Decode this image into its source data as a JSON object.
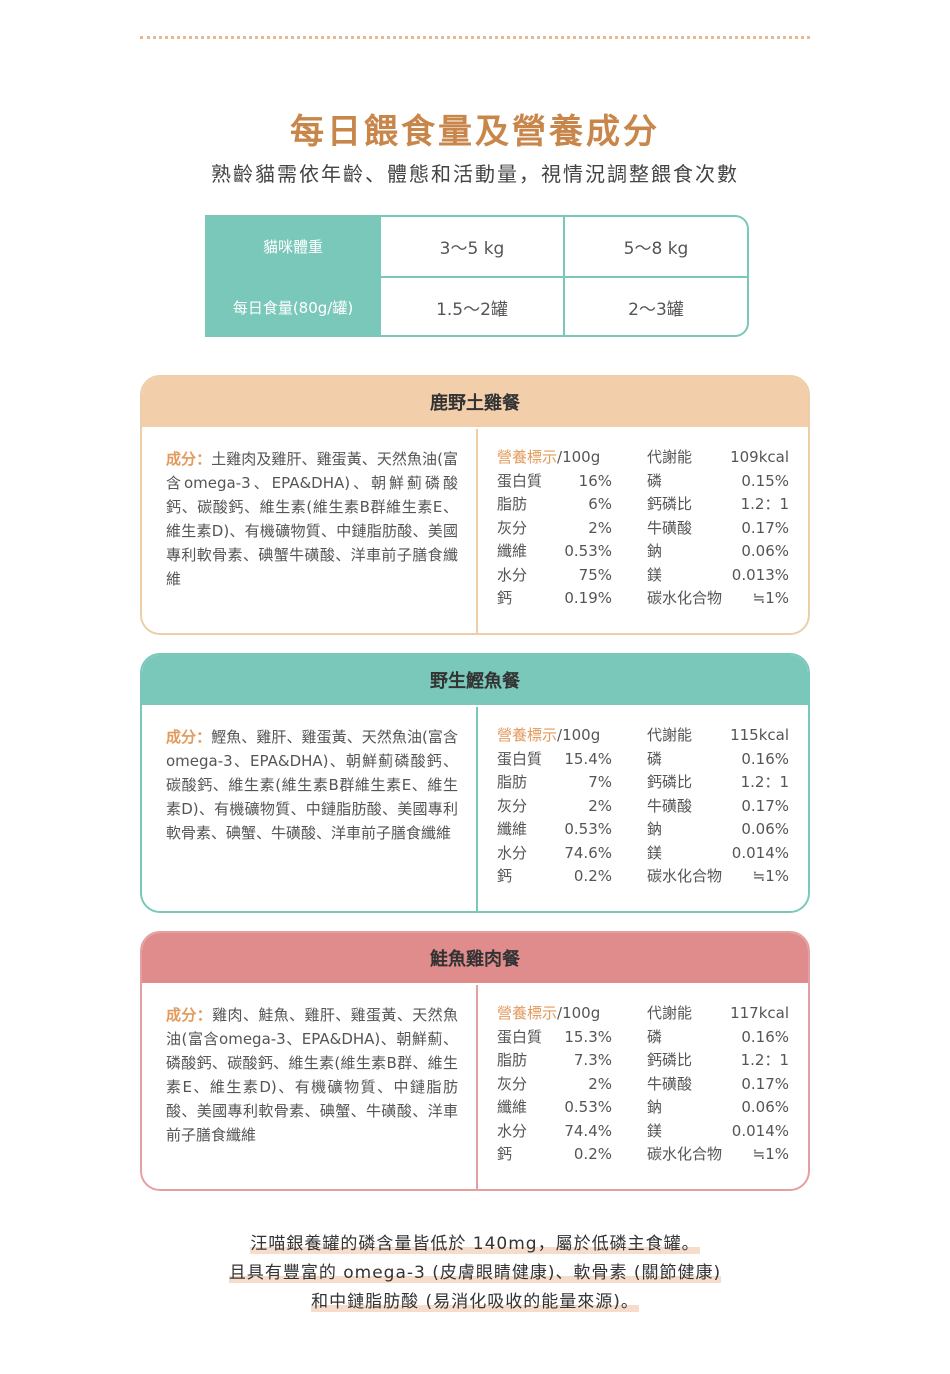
{
  "header": {
    "title": "每日餵食量及營養成分",
    "subtitle": "熟齡貓需依年齡、體態和活動量，視情況調整餵食次數"
  },
  "feeding_table": {
    "rows": [
      [
        "貓咪體重",
        "3～5 kg",
        "5～8 kg"
      ],
      [
        "每日食量(80g/罐)",
        "1.5～2罐",
        "2～3罐"
      ]
    ]
  },
  "products": [
    {
      "name": "鹿野土雞餐",
      "ingredients_label": "成分：",
      "ingredients": "土雞肉及雞肝、雞蛋黃、天然魚油(富含omega-3、EPA&DHA)、朝鮮薊磷酸鈣、碳酸鈣、維生素(維生素B群維生素E、維生素D)、有機礦物質、中鏈脂肪酸、美國專利軟骨素、碘蟹牛磺酸、洋車前子膳食纖維",
      "nutrition_label": "營養標示",
      "nutrition_unit": "/100g",
      "nutrients_left": [
        [
          "蛋白質",
          "16%"
        ],
        [
          "脂肪",
          "6%"
        ],
        [
          "灰分",
          "2%"
        ],
        [
          "纖維",
          "0.53%"
        ],
        [
          "水分",
          "75%"
        ],
        [
          "鈣",
          "0.19%"
        ]
      ],
      "nutrients_right": [
        [
          "代謝能",
          "109kcal"
        ],
        [
          "磷",
          "0.15%"
        ],
        [
          "鈣磷比",
          "1.2：1"
        ],
        [
          "牛磺酸",
          "0.17%"
        ],
        [
          "鈉",
          "0.06%"
        ],
        [
          "鎂",
          "0.013%"
        ],
        [
          "碳水化合物",
          "≒1%"
        ]
      ]
    },
    {
      "name": "野生鰹魚餐",
      "ingredients_label": "成分：",
      "ingredients": "鰹魚、雞肝、雞蛋黃、天然魚油(富含omega-3、EPA&DHA)、朝鮮薊磷酸鈣、碳酸鈣、維生素(維生素B群維生素E、維生素D)、有機礦物質、中鏈脂肪酸、美國專利軟骨素、碘蟹、牛磺酸、洋車前子膳食纖維",
      "nutrition_label": "營養標示",
      "nutrition_unit": "/100g",
      "nutrients_left": [
        [
          "蛋白質",
          "15.4%"
        ],
        [
          "脂肪",
          "7%"
        ],
        [
          "灰分",
          "2%"
        ],
        [
          "纖維",
          "0.53%"
        ],
        [
          "水分",
          "74.6%"
        ],
        [
          "鈣",
          "0.2%"
        ]
      ],
      "nutrients_right": [
        [
          "代謝能",
          "115kcal"
        ],
        [
          "磷",
          "0.16%"
        ],
        [
          "鈣磷比",
          "1.2：1"
        ],
        [
          "牛磺酸",
          "0.17%"
        ],
        [
          "鈉",
          "0.06%"
        ],
        [
          "鎂",
          "0.014%"
        ],
        [
          "碳水化合物",
          "≒1%"
        ]
      ]
    },
    {
      "name": "鮭魚雞肉餐",
      "ingredients_label": "成分：",
      "ingredients": "雞肉、鮭魚、雞肝、雞蛋黃、天然魚油(富含omega-3、EPA&DHA)、朝鮮薊、磷酸鈣、碳酸鈣、維生素(維生素B群、維生素E、維生素D)、有機礦物質、中鏈脂肪酸、美國專利軟骨素、碘蟹、牛磺酸、洋車前子膳食纖維",
      "nutrition_label": "營養標示",
      "nutrition_unit": "/100g",
      "nutrients_left": [
        [
          "蛋白質",
          "15.3%"
        ],
        [
          "脂肪",
          "7.3%"
        ],
        [
          "灰分",
          "2%"
        ],
        [
          "纖維",
          "0.53%"
        ],
        [
          "水分",
          "74.4%"
        ],
        [
          "鈣",
          "0.2%"
        ]
      ],
      "nutrients_right": [
        [
          "代謝能",
          "117kcal"
        ],
        [
          "磷",
          "0.16%"
        ],
        [
          "鈣磷比",
          "1.2：1"
        ],
        [
          "牛磺酸",
          "0.17%"
        ],
        [
          "鈉",
          "0.06%"
        ],
        [
          "鎂",
          "0.014%"
        ],
        [
          "碳水化合物",
          "≒1%"
        ]
      ]
    }
  ],
  "footer": {
    "lines": [
      "汪喵銀養罐的磷含量皆低於 140mg，屬於低磷主食罐。",
      "且具有豐富的 omega-3 (皮膚眼睛健康)、軟骨素 (關節健康)",
      "和中鏈脂肪酸 (易消化吸收的能量來源)。"
    ]
  }
}
